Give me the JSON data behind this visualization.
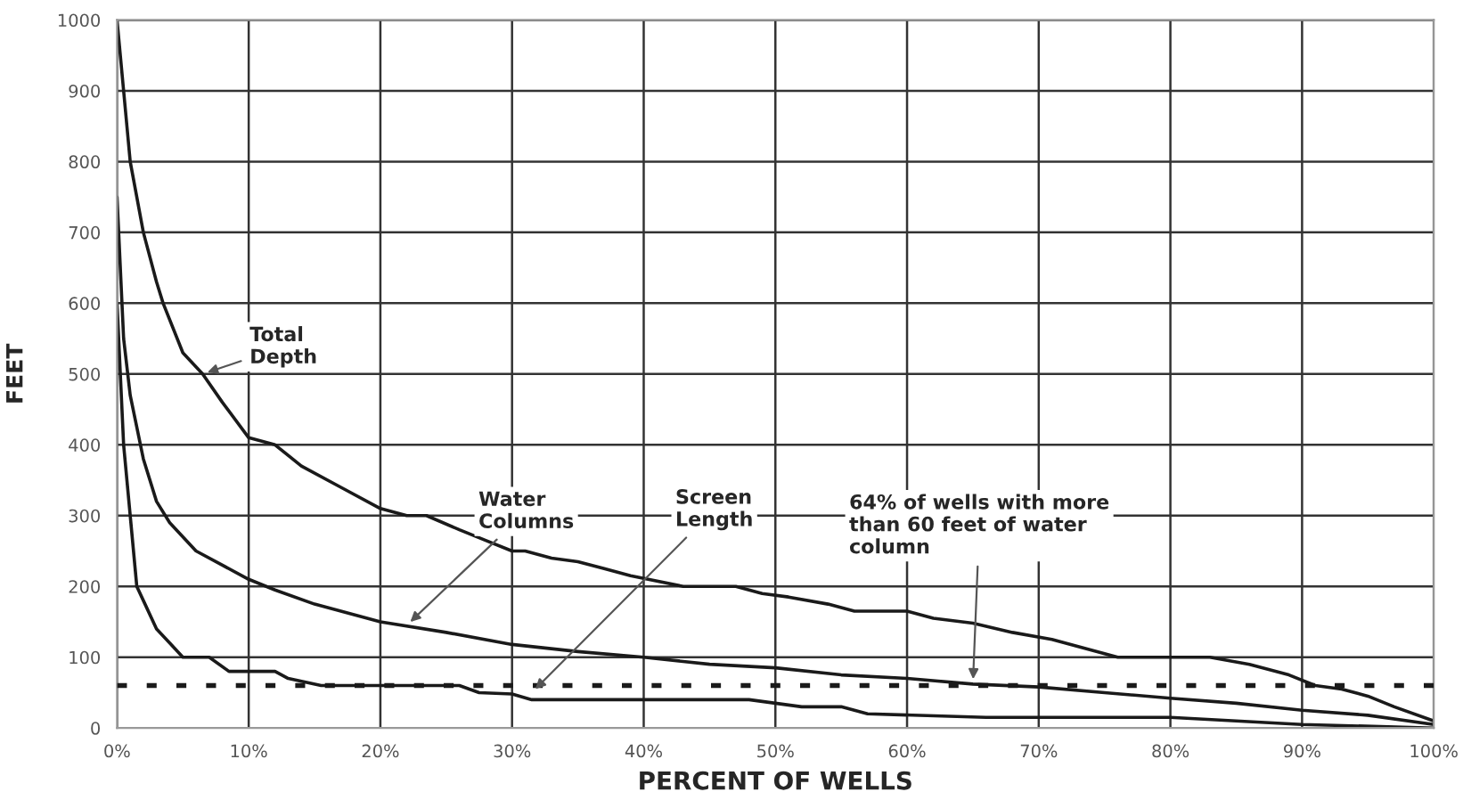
{
  "chart_data": {
    "type": "line",
    "xlabel": "PERCENT OF WELLS",
    "ylabel": "FEET",
    "series": [
      {
        "color": "#1a1a1a",
        "x": [
          0,
          0.5,
          1,
          1.5,
          2,
          3,
          3.5,
          5,
          6.5,
          8,
          10,
          12,
          14,
          17,
          20,
          22,
          23.5,
          26,
          28,
          30,
          31,
          33,
          35,
          37,
          39,
          43,
          47,
          49,
          51,
          54,
          56,
          60,
          62,
          65,
          68,
          71,
          74,
          76,
          83,
          86,
          89,
          91,
          93,
          95,
          97,
          100
        ],
        "values": [
          1000,
          900,
          800,
          750,
          700,
          630,
          600,
          530,
          500,
          460,
          410,
          400,
          370,
          340,
          310,
          300,
          300,
          280,
          265,
          250,
          250,
          240,
          235,
          225,
          215,
          200,
          200,
          190,
          185,
          175,
          165,
          165,
          155,
          148,
          135,
          125,
          110,
          100,
          100,
          90,
          75,
          60,
          55,
          45,
          30,
          10
        ]
      },
      {
        "color": "#1a1a1a",
        "x": [
          0,
          0.5,
          1,
          2,
          3,
          4,
          6,
          8,
          10,
          12,
          15,
          18,
          20,
          25,
          30,
          35,
          40,
          45,
          50,
          55,
          60,
          65,
          70,
          75,
          80,
          85,
          90,
          95,
          100
        ],
        "values": [
          750,
          550,
          470,
          380,
          320,
          290,
          250,
          230,
          210,
          195,
          175,
          160,
          150,
          135,
          118,
          108,
          100,
          90,
          85,
          75,
          70,
          62,
          58,
          50,
          42,
          35,
          25,
          18,
          5
        ]
      },
      {
        "color": "#1a1a1a",
        "x": [
          0,
          0.5,
          1,
          1.5,
          2,
          3,
          4,
          5,
          7,
          8.5,
          12,
          13,
          15.5,
          26,
          27.5,
          30,
          31.5,
          48,
          50,
          52,
          55,
          57,
          66,
          80,
          85,
          90,
          100
        ],
        "values": [
          600,
          400,
          300,
          200,
          180,
          140,
          120,
          100,
          100,
          80,
          80,
          70,
          60,
          60,
          50,
          48,
          40,
          40,
          35,
          30,
          30,
          20,
          15,
          15,
          10,
          5,
          0
        ]
      }
    ],
    "annotations": [
      {
        "text": "Total\nDepth",
        "x": 6.5,
        "y": 500
      },
      {
        "text": "Water\nColumns",
        "x": 22,
        "y": 145
      },
      {
        "text": "Screen\nLength",
        "x": 31.5,
        "y": 50
      },
      {
        "text": "64% of wells with more\nthan 60 feet of water\ncolumn",
        "x": 65,
        "y": 62
      }
    ],
    "ref_lines": [
      {
        "axis": "y",
        "value": 60,
        "line_style": "dotted",
        "color": "#1a1a1a"
      }
    ],
    "xlim": [
      0,
      100
    ],
    "ylim": [
      0,
      1000
    ],
    "xticks": [
      {
        "value": 0,
        "label": "0%"
      },
      {
        "value": 10,
        "label": "10%"
      },
      {
        "value": 20,
        "label": "20%"
      },
      {
        "value": 30,
        "label": "30%"
      },
      {
        "value": 40,
        "label": "40%"
      },
      {
        "value": 50,
        "label": "50%"
      },
      {
        "value": 60,
        "label": "60%"
      },
      {
        "value": 70,
        "label": "70%"
      },
      {
        "value": 80,
        "label": "80%"
      },
      {
        "value": 90,
        "label": "90%"
      },
      {
        "value": 100,
        "label": "100%"
      }
    ],
    "yticks": [
      0,
      100,
      200,
      300,
      400,
      500,
      600,
      700,
      800,
      900,
      1000
    ],
    "grid": true,
    "legend": false,
    "marker": "none",
    "line_style": "solid"
  }
}
